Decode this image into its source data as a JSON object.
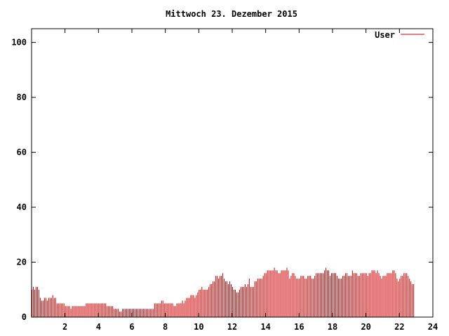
{
  "chart_data": {
    "type": "bar",
    "title": "Mittwoch 23. Dezember 2015",
    "xlabel": "",
    "ylabel": "",
    "xlim": [
      0,
      24
    ],
    "ylim": [
      0,
      105
    ],
    "x_ticks": [
      2,
      4,
      6,
      8,
      10,
      12,
      14,
      16,
      18,
      20,
      22,
      24
    ],
    "y_ticks": [
      0,
      20,
      40,
      60,
      80,
      100
    ],
    "x_tick_labels": [
      "2",
      "4",
      "6",
      "8",
      "10",
      "12",
      "14",
      "16",
      "18",
      "20",
      "22",
      "24"
    ],
    "y_tick_labels": [
      "0",
      "20",
      "40",
      "60",
      "80",
      "100"
    ],
    "grid": false,
    "legend_position": "top-right",
    "series": [
      {
        "name": "User",
        "color": "#cc0000",
        "interval_hours": 0.0833333,
        "values": [
          10,
          11,
          10,
          11,
          11,
          10,
          7,
          6,
          6,
          7,
          7,
          6,
          7,
          7,
          7,
          8,
          7,
          7,
          5,
          5,
          5,
          5,
          5,
          5,
          4,
          4,
          4,
          4,
          3,
          4,
          4,
          4,
          4,
          4,
          4,
          4,
          4,
          4,
          4,
          5,
          5,
          5,
          5,
          5,
          5,
          5,
          5,
          5,
          5,
          5,
          5,
          5,
          5,
          5,
          4,
          4,
          4,
          4,
          4,
          3,
          3,
          3,
          3,
          2,
          2,
          3,
          3,
          3,
          3,
          3,
          3,
          3,
          3,
          3,
          3,
          3,
          3,
          3,
          3,
          3,
          3,
          3,
          3,
          3,
          3,
          3,
          3,
          3,
          5,
          5,
          5,
          5,
          5,
          6,
          6,
          5,
          5,
          5,
          5,
          5,
          5,
          5,
          4,
          4,
          5,
          5,
          5,
          5,
          6,
          5,
          6,
          7,
          7,
          7,
          8,
          8,
          8,
          7,
          8,
          9,
          10,
          10,
          11,
          10,
          10,
          10,
          10,
          11,
          12,
          12,
          13,
          13,
          15,
          15,
          14,
          15,
          15,
          16,
          14,
          13,
          13,
          12,
          13,
          12,
          11,
          10,
          10,
          9,
          9,
          10,
          11,
          11,
          11,
          12,
          11,
          12,
          14,
          11,
          11,
          11,
          13,
          13,
          14,
          14,
          14,
          14,
          15,
          16,
          16,
          17,
          17,
          17,
          17,
          17,
          18,
          17,
          17,
          16,
          16,
          17,
          17,
          17,
          17,
          18,
          17,
          14,
          15,
          16,
          16,
          15,
          14,
          14,
          14,
          15,
          15,
          15,
          14,
          14,
          15,
          15,
          15,
          14,
          14,
          15,
          16,
          16,
          16,
          16,
          16,
          16,
          17,
          18,
          17,
          17,
          15,
          16,
          16,
          16,
          16,
          15,
          14,
          14,
          14,
          15,
          15,
          16,
          16,
          15,
          15,
          15,
          17,
          16,
          16,
          16,
          15,
          15,
          16,
          16,
          16,
          16,
          16,
          15,
          16,
          16,
          17,
          17,
          17,
          16,
          17,
          16,
          15,
          14,
          15,
          15,
          15,
          16,
          16,
          16,
          16,
          17,
          17,
          16,
          14,
          13,
          14,
          15,
          15,
          16,
          16,
          16,
          15,
          14,
          13,
          12,
          12
        ]
      }
    ]
  }
}
